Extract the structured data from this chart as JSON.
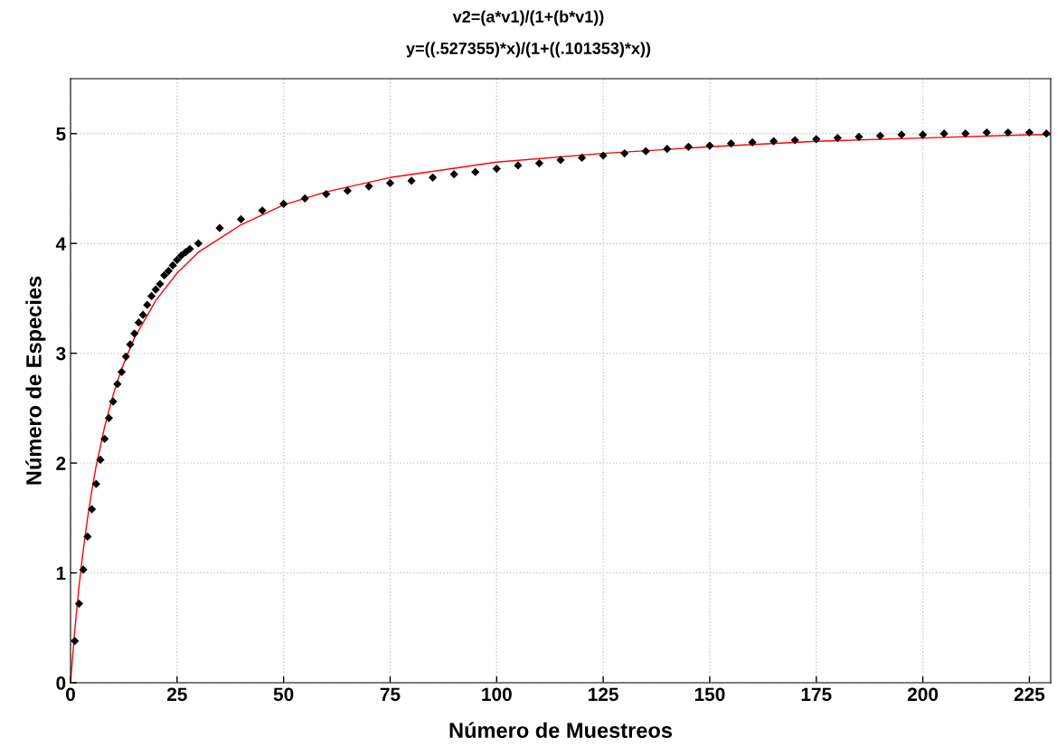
{
  "chart_data": {
    "type": "scatter",
    "title": "v2=(a*v1)/(1+(b*v1))",
    "subtitle": "y=((.527355)*x)/(1+((.101353)*x))",
    "xlabel": "Número de Muestreos",
    "ylabel": "Número de Especies",
    "xlim": [
      0,
      230
    ],
    "ylim": [
      0,
      5.5
    ],
    "xticks": [
      0,
      25,
      50,
      75,
      100,
      125,
      150,
      175,
      200,
      225
    ],
    "yticks": [
      0,
      1,
      2,
      3,
      4,
      5
    ],
    "grid": true,
    "legend": false,
    "series": [
      {
        "color": "#000000",
        "marker": "diamond",
        "x": [
          1,
          2,
          3,
          4,
          5,
          6,
          7,
          8,
          9,
          10,
          11,
          12,
          13,
          14,
          15,
          16,
          17,
          18,
          19,
          20,
          21,
          22,
          23,
          24,
          25,
          26,
          27,
          28,
          30,
          35,
          40,
          45,
          50,
          55,
          60,
          65,
          70,
          75,
          80,
          85,
          90,
          95,
          100,
          105,
          110,
          115,
          120,
          125,
          130,
          135,
          140,
          145,
          150,
          155,
          160,
          165,
          170,
          175,
          180,
          185,
          190,
          195,
          200,
          205,
          210,
          215,
          220,
          225,
          229
        ],
        "values": [
          0.38,
          0.72,
          1.03,
          1.33,
          1.58,
          1.81,
          2.03,
          2.22,
          2.41,
          2.56,
          2.72,
          2.83,
          2.97,
          3.08,
          3.18,
          3.28,
          3.35,
          3.44,
          3.52,
          3.58,
          3.63,
          3.71,
          3.75,
          3.8,
          3.85,
          3.89,
          3.92,
          3.95,
          4.0,
          4.14,
          4.22,
          4.3,
          4.36,
          4.41,
          4.45,
          4.48,
          4.52,
          4.55,
          4.57,
          4.6,
          4.63,
          4.65,
          4.68,
          4.71,
          4.73,
          4.76,
          4.78,
          4.8,
          4.82,
          4.84,
          4.86,
          4.88,
          4.89,
          4.91,
          4.92,
          4.93,
          4.94,
          4.95,
          4.96,
          4.97,
          4.98,
          4.99,
          4.99,
          5.0,
          5.0,
          5.01,
          5.01,
          5.01,
          5.0
        ]
      },
      {
        "type": "line",
        "color": "#ff0000",
        "marker": "none",
        "x": [
          0,
          1,
          2,
          3,
          4,
          5,
          6,
          8,
          10,
          12,
          15,
          20,
          25,
          30,
          40,
          50,
          60,
          75,
          100,
          125,
          150,
          175,
          200,
          225,
          230
        ],
        "values": [
          0,
          0.48,
          0.88,
          1.21,
          1.5,
          1.75,
          1.97,
          2.33,
          2.62,
          2.86,
          3.14,
          3.48,
          3.73,
          3.92,
          4.17,
          4.35,
          4.47,
          4.6,
          4.74,
          4.82,
          4.88,
          4.93,
          4.96,
          4.99,
          4.99
        ]
      }
    ]
  }
}
